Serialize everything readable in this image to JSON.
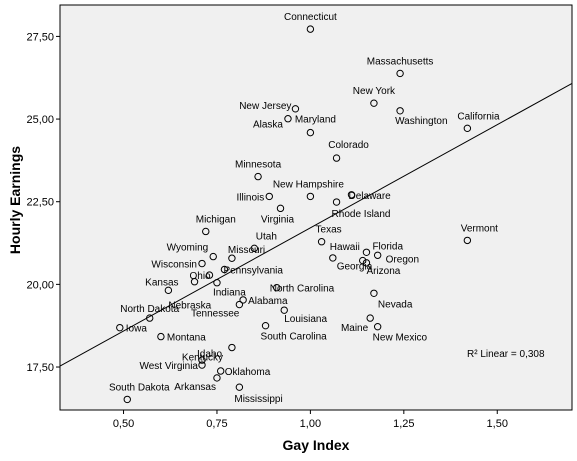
{
  "chart_data": {
    "type": "scatter",
    "xlabel": "Gay Index",
    "ylabel": "Hourly Earnings",
    "xlim": [
      0.33,
      1.7
    ],
    "ylim": [
      16.2,
      28.45
    ],
    "xticks": [
      0.5,
      0.75,
      1.0,
      1.25,
      1.5
    ],
    "xtick_labels": [
      "0,50",
      "0,75",
      "1,00",
      "1,25",
      "1,50"
    ],
    "yticks": [
      17.5,
      20.0,
      22.5,
      25.0,
      27.5
    ],
    "ytick_labels": [
      "17,50",
      "20,00",
      "22,50",
      "25,00",
      "27,50"
    ],
    "grid": false,
    "background": "#f0f0f0",
    "marker_color": "#000000",
    "fit_line": {
      "intercept": 15.47,
      "slope": 6.24
    },
    "fit_label": "R² Linear = 0,308",
    "points": [
      {
        "label": "Connecticut",
        "x": 1.0,
        "y": 27.72
      },
      {
        "label": "Massachusetts",
        "x": 1.24,
        "y": 26.38
      },
      {
        "label": "New York",
        "x": 1.17,
        "y": 25.48
      },
      {
        "label": "New Jersey",
        "x": 0.96,
        "y": 25.31
      },
      {
        "label": "Alaska",
        "x": 0.94,
        "y": 25.01
      },
      {
        "label": "Washington",
        "x": 1.24,
        "y": 25.25
      },
      {
        "label": "California",
        "x": 1.42,
        "y": 24.72
      },
      {
        "label": "Maryland",
        "x": 1.0,
        "y": 24.59
      },
      {
        "label": "Colorado",
        "x": 1.07,
        "y": 23.82
      },
      {
        "label": "Minnesota",
        "x": 0.86,
        "y": 23.26
      },
      {
        "label": "New Hampshire",
        "x": 1.0,
        "y": 22.66
      },
      {
        "label": "Delaware",
        "x": 1.11,
        "y": 22.71
      },
      {
        "label": "Illinois",
        "x": 0.89,
        "y": 22.66
      },
      {
        "label": "Rhode Island",
        "x": 1.07,
        "y": 22.49
      },
      {
        "label": "Virginia",
        "x": 0.92,
        "y": 22.3
      },
      {
        "label": "Michigan",
        "x": 0.72,
        "y": 21.6
      },
      {
        "label": "Texas",
        "x": 1.03,
        "y": 21.29
      },
      {
        "label": "Vermont",
        "x": 1.42,
        "y": 21.33
      },
      {
        "label": "Utah",
        "x": 0.85,
        "y": 21.09
      },
      {
        "label": "Hawaii",
        "x": 1.06,
        "y": 20.8
      },
      {
        "label": "Florida",
        "x": 1.15,
        "y": 20.97
      },
      {
        "label": "Oregon",
        "x": 1.18,
        "y": 20.88
      },
      {
        "label": "Wyoming",
        "x": 0.74,
        "y": 20.84
      },
      {
        "label": "Missouri",
        "x": 0.79,
        "y": 20.79
      },
      {
        "label": "Wisconsin",
        "x": 0.71,
        "y": 20.63
      },
      {
        "label": "Georgia",
        "x": 1.14,
        "y": 20.72
      },
      {
        "label": "Arizona",
        "x": 1.15,
        "y": 20.65
      },
      {
        "label": "Pennsylvania",
        "x": 0.77,
        "y": 20.45
      },
      {
        "label": "Ohio",
        "x": 0.73,
        "y": 20.28
      },
      {
        "label": "Kansas",
        "x": 0.69,
        "y": 20.08
      },
      {
        "label": "Indiana",
        "x": 0.75,
        "y": 20.05
      },
      {
        "label": "North Carolina",
        "x": 0.91,
        "y": 19.9
      },
      {
        "label": "Nebraska",
        "x": 0.62,
        "y": 19.82
      },
      {
        "label": "Nevada",
        "x": 1.17,
        "y": 19.73
      },
      {
        "label": "Alabama",
        "x": 0.82,
        "y": 19.53
      },
      {
        "label": "Tennessee",
        "x": 0.81,
        "y": 19.39
      },
      {
        "label": "Louisiana",
        "x": 0.93,
        "y": 19.22
      },
      {
        "label": "North Dakota",
        "x": 0.57,
        "y": 18.98
      },
      {
        "label": "Maine",
        "x": 1.16,
        "y": 18.98
      },
      {
        "label": "South Carolina",
        "x": 0.88,
        "y": 18.75
      },
      {
        "label": "Iowa",
        "x": 0.49,
        "y": 18.69
      },
      {
        "label": "New Mexico",
        "x": 1.18,
        "y": 18.72
      },
      {
        "label": "Montana",
        "x": 0.6,
        "y": 18.42
      },
      {
        "label": "Kentucky",
        "x": 0.79,
        "y": 18.09
      },
      {
        "label": "Idaho",
        "x": 0.71,
        "y": 17.71
      },
      {
        "label": "West Virginia",
        "x": 0.71,
        "y": 17.56
      },
      {
        "label": "Oklahoma",
        "x": 0.76,
        "y": 17.38
      },
      {
        "label": "Arkansas",
        "x": 0.75,
        "y": 17.17
      },
      {
        "label": "Mississippi",
        "x": 0.81,
        "y": 16.89
      },
      {
        "label": "South Dakota",
        "x": 0.51,
        "y": 16.52
      }
    ]
  }
}
